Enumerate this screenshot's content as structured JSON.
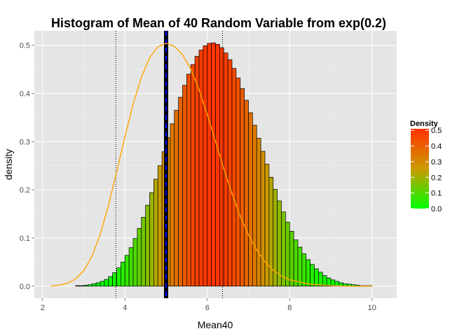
{
  "chart_data": {
    "type": "bar",
    "title": "Histogram of Mean of 40 Random Variable from exp(0.2)",
    "xlabel": "Mean40",
    "ylabel": "density",
    "xlim": [
      1.8,
      10.6
    ],
    "ylim": [
      -0.025,
      0.53
    ],
    "xticks": [
      2,
      4,
      6,
      8,
      10
    ],
    "yticks": [
      0.0,
      0.1,
      0.2,
      0.3,
      0.4,
      0.5
    ],
    "xtick_labels": [
      "2",
      "4",
      "6",
      "8",
      "10"
    ],
    "ytick_labels": [
      "0.0",
      "0.1",
      "0.2",
      "0.3",
      "0.4",
      "0.5"
    ],
    "grid": true,
    "histogram": {
      "bin_width": 0.1,
      "x_start": 2.0,
      "density": [
        0.0,
        0.0,
        0.0,
        0.0,
        0.0,
        0.0,
        0.0,
        0.0,
        0.001,
        0.001,
        0.002,
        0.003,
        0.005,
        0.007,
        0.01,
        0.014,
        0.02,
        0.028,
        0.038,
        0.05,
        0.064,
        0.08,
        0.099,
        0.12,
        0.143,
        0.168,
        0.194,
        0.222,
        0.25,
        0.279,
        0.308,
        0.337,
        0.365,
        0.392,
        0.417,
        0.44,
        0.46,
        0.477,
        0.49,
        0.499,
        0.504,
        0.505,
        0.502,
        0.495,
        0.484,
        0.47,
        0.452,
        0.432,
        0.41,
        0.386,
        0.36,
        0.334,
        0.307,
        0.28,
        0.253,
        0.226,
        0.201,
        0.177,
        0.154,
        0.133,
        0.114,
        0.096,
        0.081,
        0.067,
        0.055,
        0.045,
        0.036,
        0.029,
        0.022,
        0.017,
        0.013,
        0.01,
        0.007,
        0.005,
        0.004,
        0.003,
        0.002,
        0.001,
        0.001,
        0.001,
        0.0,
        0.0,
        0.0,
        0.0,
        0.0,
        0.0,
        0.0,
        0.0,
        0.0,
        0.0,
        0.0,
        0.0,
        0.0,
        0.0,
        0.0,
        0.0,
        0.0,
        0.0,
        0.0,
        0.0,
        0.0,
        0.0
      ]
    },
    "density_curve": {
      "color": "#ffa500",
      "x": [
        2.2,
        2.4,
        2.6,
        2.8,
        3.0,
        3.2,
        3.4,
        3.6,
        3.8,
        4.0,
        4.2,
        4.4,
        4.6,
        4.8,
        5.0,
        5.2,
        5.4,
        5.6,
        5.8,
        6.0,
        6.2,
        6.4,
        6.6,
        6.8,
        7.0,
        7.2,
        7.4,
        7.6,
        7.8,
        8.0,
        8.5,
        9.0,
        9.5,
        10.0
      ],
      "y": [
        0.0,
        0.002,
        0.006,
        0.015,
        0.032,
        0.062,
        0.108,
        0.168,
        0.238,
        0.31,
        0.378,
        0.434,
        0.474,
        0.497,
        0.504,
        0.498,
        0.48,
        0.45,
        0.408,
        0.356,
        0.3,
        0.244,
        0.192,
        0.145,
        0.106,
        0.075,
        0.051,
        0.033,
        0.021,
        0.013,
        0.004,
        0.001,
        0.0,
        0.0
      ]
    },
    "vlines": [
      {
        "x": 5.0,
        "color": "#000000",
        "style": "solid-thick"
      },
      {
        "x": 5.0,
        "color": "#0000ff",
        "style": "dashed"
      },
      {
        "x": 3.78,
        "color": "#000000",
        "style": "dotted"
      },
      {
        "x": 6.37,
        "color": "#000000",
        "style": "dotted"
      }
    ],
    "legend": {
      "title": "Density",
      "placement": "right",
      "min": 0.0,
      "max": 0.51,
      "ticks": [
        0.0,
        0.1,
        0.2,
        0.3,
        0.4,
        0.5
      ],
      "tick_labels": [
        "0.0",
        "0.1",
        "0.2",
        "0.3",
        "0.4",
        "0.5"
      ],
      "color_low": "#00ff00",
      "color_high": "#ff3300"
    }
  }
}
